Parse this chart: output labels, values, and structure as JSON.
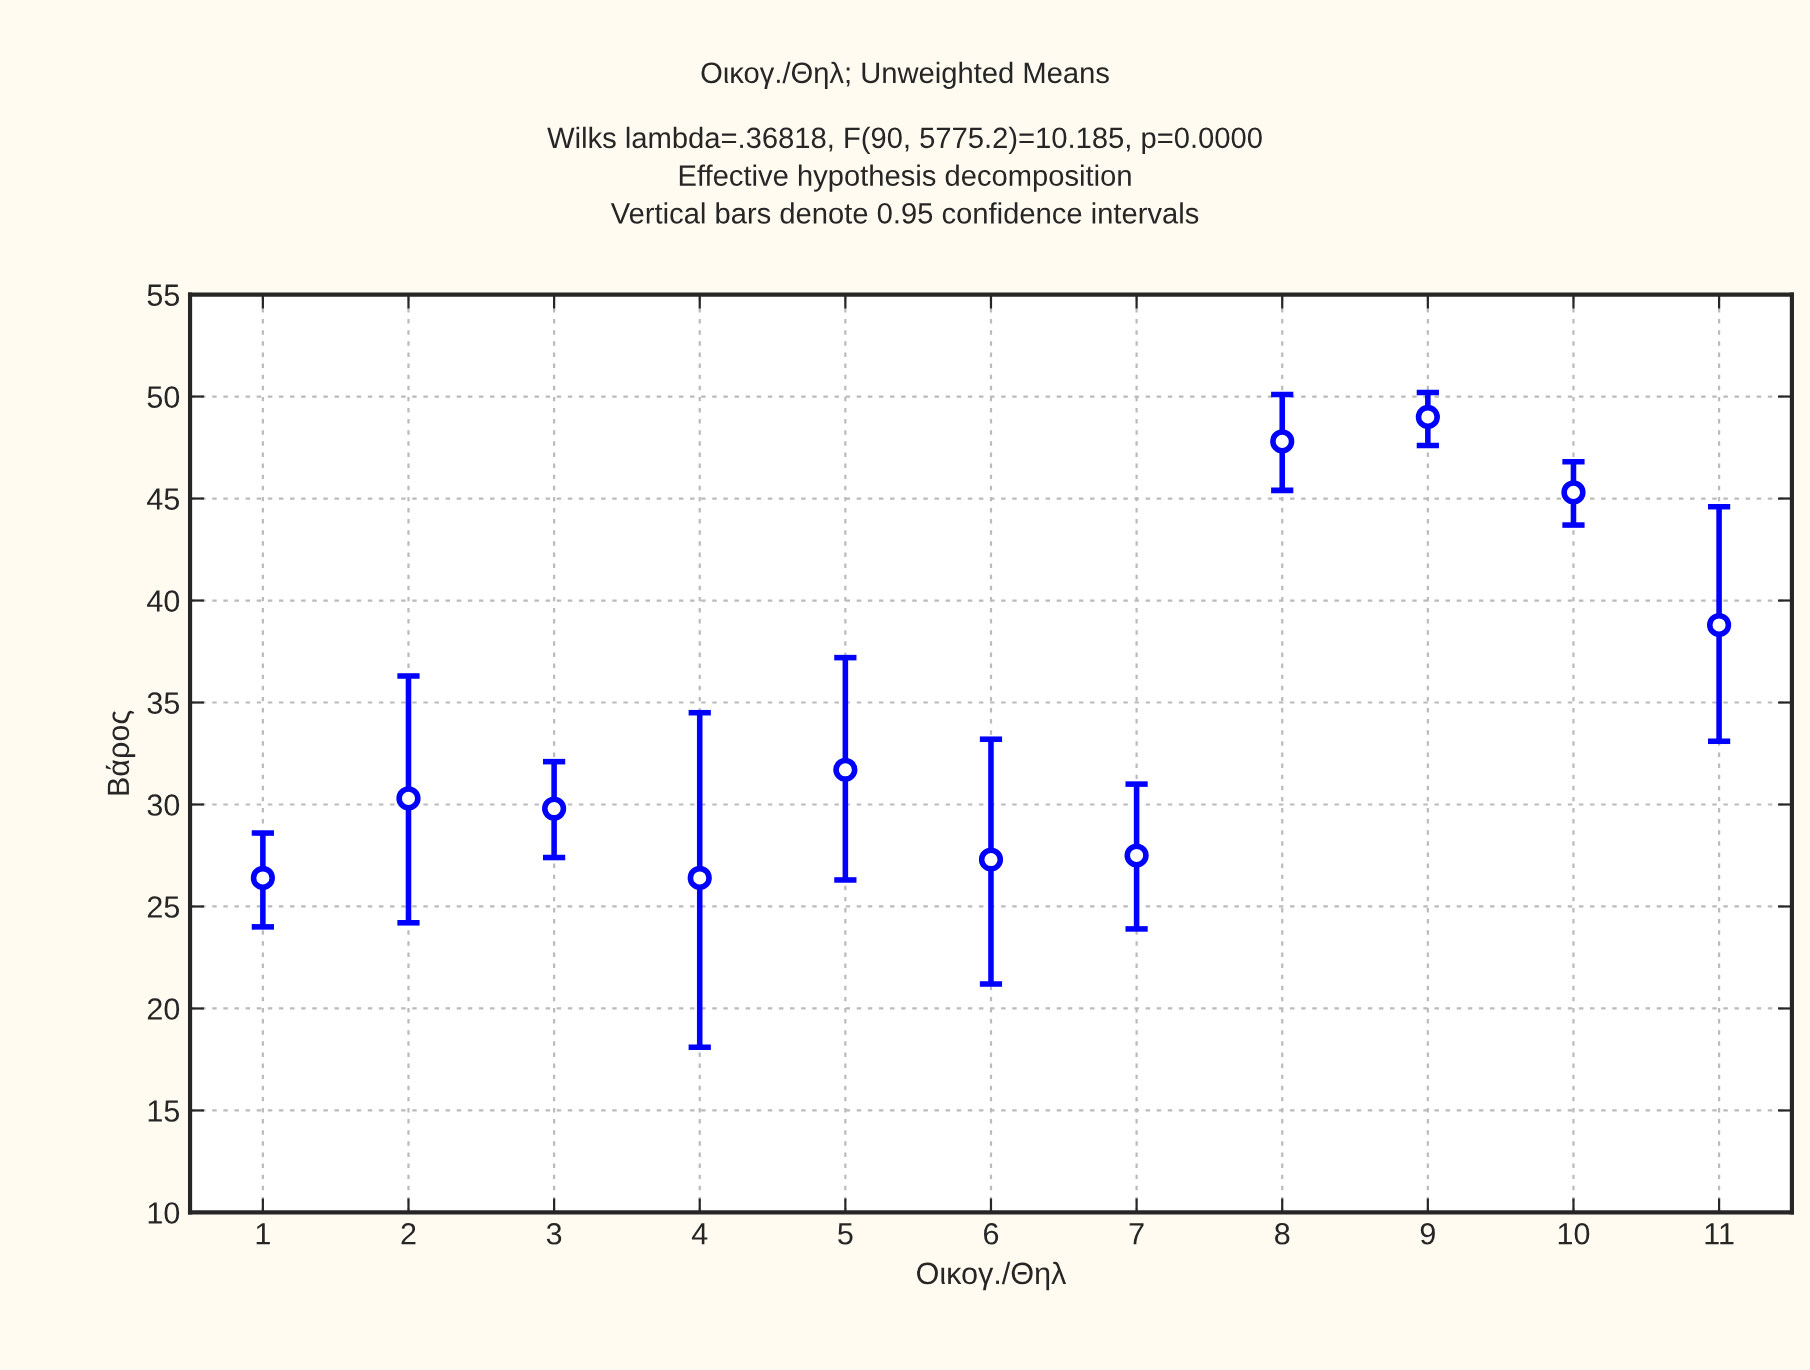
{
  "chart_data": {
    "type": "scatter",
    "title": "Οικογ./Θηλ; Unweighted Means",
    "subtitle": "Wilks lambda=.36818, F(90, 5775.2)=10.185, p=0.0000\nEffective hypothesis decomposition\nVertical bars denote 0.95 confidence intervals",
    "xlabel": "Οικογ./Θηλ",
    "ylabel": "Βάρος",
    "categories": [
      "1",
      "2",
      "3",
      "4",
      "5",
      "6",
      "7",
      "8",
      "9",
      "10",
      "11"
    ],
    "series": [
      {
        "color": "#0000ff",
        "values": [
          26.4,
          30.3,
          29.8,
          26.4,
          31.7,
          27.3,
          27.5,
          47.8,
          49.0,
          45.3,
          38.8
        ],
        "errors": [
          [
            24.0,
            28.6
          ],
          [
            24.2,
            36.3
          ],
          [
            27.4,
            32.1
          ],
          [
            18.1,
            34.5
          ],
          [
            26.3,
            37.2
          ],
          [
            21.2,
            33.2
          ],
          [
            23.9,
            31.0
          ],
          [
            45.4,
            50.1
          ],
          [
            47.6,
            50.2
          ],
          [
            43.7,
            46.8
          ],
          [
            33.1,
            44.6
          ]
        ]
      }
    ],
    "ylim": [
      10,
      55
    ],
    "yticks": [
      10,
      15,
      20,
      25,
      30,
      35,
      40,
      45,
      50,
      55
    ],
    "grid": true,
    "marker": "circle",
    "legend": false
  }
}
